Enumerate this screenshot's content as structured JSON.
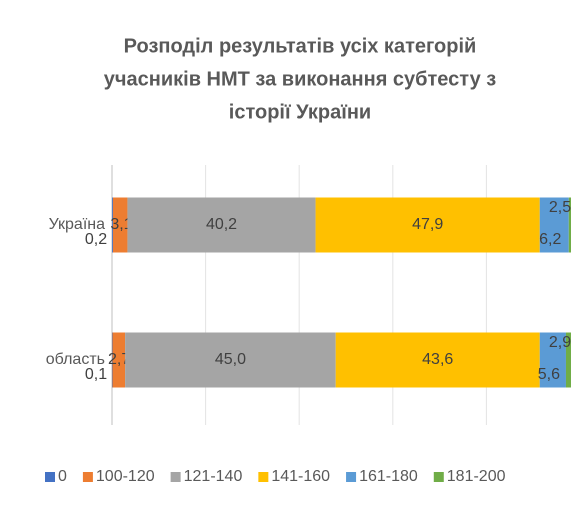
{
  "chart_data": {
    "type": "stacked-bar-horizontal",
    "title": [
      "Розподіл результатів усіх категорій",
      "учасників НМТ за виконання субтесту з",
      "історії України"
    ],
    "categories": [
      "Україна",
      "область"
    ],
    "series": [
      {
        "name": "0",
        "color": "#4472c4",
        "values": [
          0.2,
          0.1
        ],
        "value_labels": [
          "0,2",
          "0,1"
        ]
      },
      {
        "name": "100-120",
        "color": "#ed7d31",
        "values": [
          3.1,
          2.7
        ],
        "value_labels": [
          "3,1",
          "2,7"
        ]
      },
      {
        "name": "121-140",
        "color": "#a5a5a5",
        "values": [
          40.2,
          45.0
        ],
        "value_labels": [
          "40,2",
          "45,0"
        ]
      },
      {
        "name": "141-160",
        "color": "#ffc000",
        "values": [
          47.9,
          43.6
        ],
        "value_labels": [
          "47,9",
          "43,6"
        ]
      },
      {
        "name": "161-180",
        "color": "#5b9bd5",
        "values": [
          6.2,
          5.6
        ],
        "value_labels": [
          "6,2",
          "5,6"
        ]
      },
      {
        "name": "181-200",
        "color": "#70ad47",
        "values": [
          2.5,
          2.9
        ],
        "value_labels": [
          "2,5",
          "2,9"
        ]
      }
    ],
    "xlim": [
      0,
      100
    ],
    "xticks": [
      0,
      20,
      40,
      60,
      80,
      100
    ],
    "grid": true,
    "legend": "bottom"
  }
}
